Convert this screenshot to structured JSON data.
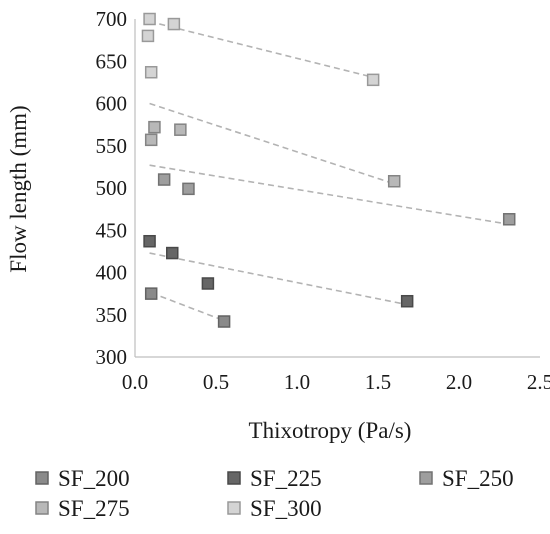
{
  "chart_data": {
    "type": "scatter",
    "xlabel": "Thixotropy (Pa/s)",
    "ylabel": "Flow length  (mm)",
    "xlim": [
      0,
      2.5
    ],
    "ylim": [
      300,
      700
    ],
    "xticks": [
      0.0,
      0.5,
      1.0,
      1.5,
      2.0,
      2.5
    ],
    "xtick_labels": [
      "0.0",
      "0.5",
      "1.0",
      "1.5",
      "2.0",
      "2.5"
    ],
    "yticks": [
      300,
      350,
      400,
      450,
      500,
      550,
      600,
      650,
      700
    ],
    "ytick_labels": [
      "300",
      "350",
      "400",
      "450",
      "500",
      "550",
      "600",
      "650",
      "700"
    ],
    "grid": false,
    "legend_position": "bottom",
    "series": [
      {
        "name": "SF_200",
        "color": "#8a8a8a",
        "points": [
          [
            0.1,
            375
          ],
          [
            0.55,
            342
          ]
        ],
        "trendline": [
          [
            0.1,
            376
          ],
          [
            0.55,
            343
          ]
        ]
      },
      {
        "name": "SF_225",
        "color": "#666666",
        "points": [
          [
            0.09,
            437
          ],
          [
            0.23,
            423
          ],
          [
            0.45,
            387
          ],
          [
            1.68,
            366
          ]
        ],
        "trendline": [
          [
            0.09,
            423
          ],
          [
            1.68,
            362
          ]
        ]
      },
      {
        "name": "SF_250",
        "color": "#9e9e9e",
        "points": [
          [
            0.18,
            510
          ],
          [
            0.33,
            499
          ],
          [
            2.31,
            463
          ]
        ],
        "trendline": [
          [
            0.09,
            527
          ],
          [
            2.31,
            457
          ]
        ]
      },
      {
        "name": "SF_275",
        "color": "#b8b8b8",
        "points": [
          [
            0.1,
            557
          ],
          [
            0.12,
            572
          ],
          [
            0.28,
            569
          ],
          [
            1.6,
            508
          ]
        ],
        "trendline": [
          [
            0.09,
            600
          ],
          [
            1.6,
            505
          ]
        ]
      },
      {
        "name": "SF_300",
        "color": "#d4d4d4",
        "points": [
          [
            0.08,
            680
          ],
          [
            0.09,
            700
          ],
          [
            0.1,
            637
          ],
          [
            0.24,
            694
          ],
          [
            1.47,
            628
          ]
        ],
        "trendline": [
          [
            0.09,
            697
          ],
          [
            1.47,
            631
          ]
        ]
      }
    ]
  }
}
